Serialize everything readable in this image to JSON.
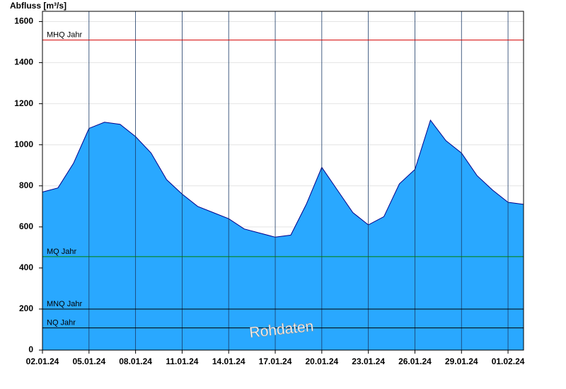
{
  "chart_data": {
    "type": "area",
    "y_label": "Abfluss [m³/s]",
    "watermark": "Rohdaten",
    "color": "#29a8ff",
    "line_color": "#00008b",
    "x": [
      "2024-01-02",
      "2024-01-03",
      "2024-01-04",
      "2024-01-05",
      "2024-01-06",
      "2024-01-07",
      "2024-01-08",
      "2024-01-09",
      "2024-01-10",
      "2024-01-11",
      "2024-01-12",
      "2024-01-13",
      "2024-01-14",
      "2024-01-15",
      "2024-01-16",
      "2024-01-17",
      "2024-01-18",
      "2024-01-19",
      "2024-01-20",
      "2024-01-21",
      "2024-01-22",
      "2024-01-23",
      "2024-01-24",
      "2024-01-25",
      "2024-01-26",
      "2024-01-27",
      "2024-01-28",
      "2024-01-29",
      "2024-01-30",
      "2024-01-31",
      "2024-02-01",
      "2024-02-02"
    ],
    "values": [
      770,
      790,
      910,
      1080,
      1110,
      1100,
      1040,
      960,
      830,
      760,
      700,
      670,
      640,
      590,
      570,
      550,
      560,
      710,
      890,
      780,
      670,
      610,
      650,
      810,
      880,
      1120,
      1020,
      960,
      850,
      780,
      720,
      710
    ],
    "xlim": [
      "2024-01-02",
      "2024-02-02"
    ],
    "xticks": [
      {
        "value": "2024-01-02",
        "label": "02.01.24"
      },
      {
        "value": "2024-01-05",
        "label": "05.01.24"
      },
      {
        "value": "2024-01-08",
        "label": "08.01.24"
      },
      {
        "value": "2024-01-11",
        "label": "11.01.24"
      },
      {
        "value": "2024-01-14",
        "label": "14.01.24"
      },
      {
        "value": "2024-01-17",
        "label": "17.01.24"
      },
      {
        "value": "2024-01-20",
        "label": "20.01.24"
      },
      {
        "value": "2024-01-23",
        "label": "23.01.24"
      },
      {
        "value": "2024-01-26",
        "label": "26.01.24"
      },
      {
        "value": "2024-01-29",
        "label": "29.01.24"
      },
      {
        "value": "2024-02-01",
        "label": "01.02.24"
      }
    ],
    "ylim": [
      0,
      1650
    ],
    "yticks": [
      0,
      200,
      400,
      600,
      800,
      1000,
      1200,
      1400,
      1600
    ],
    "grid": true,
    "reference_lines": [
      {
        "label": "MHQ Jahr",
        "value": 1510,
        "color": "#d40000"
      },
      {
        "label": "MQ Jahr",
        "value": 455,
        "color": "#008000"
      },
      {
        "label": "MNQ Jahr",
        "value": 200,
        "color": "#000000"
      },
      {
        "label": "NQ Jahr",
        "value": 108,
        "color": "#000000"
      }
    ]
  }
}
